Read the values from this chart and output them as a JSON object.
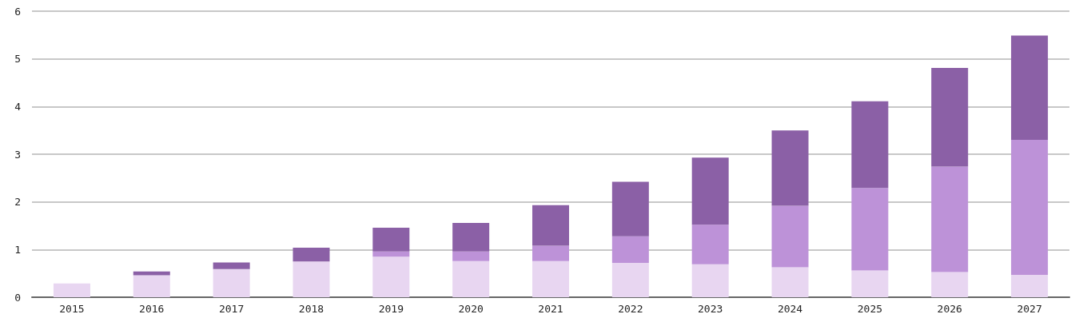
{
  "chart_data": {
    "type": "bar",
    "stacked": true,
    "categories": [
      "2015",
      "2016",
      "2017",
      "2018",
      "2019",
      "2020",
      "2021",
      "2022",
      "2023",
      "2024",
      "2025",
      "2026",
      "2027"
    ],
    "series": [
      {
        "color": "#e8d6f1",
        "values": [
          0.29,
          0.46,
          0.59,
          0.75,
          0.85,
          0.76,
          0.76,
          0.72,
          0.69,
          0.63,
          0.56,
          0.53,
          0.47
        ]
      },
      {
        "color": "#bd92d8",
        "values": [
          0,
          0,
          0,
          0,
          0.11,
          0.2,
          0.32,
          0.56,
          0.83,
          1.29,
          1.73,
          2.21,
          2.83
        ]
      },
      {
        "color": "#8b60a6",
        "values": [
          0,
          0.08,
          0.14,
          0.29,
          0.5,
          0.6,
          0.85,
          1.14,
          1.41,
          1.58,
          1.82,
          2.07,
          2.19
        ]
      }
    ],
    "ylim": [
      0,
      6
    ],
    "yticks": [
      0,
      1,
      2,
      3,
      4,
      5,
      6
    ],
    "grid": "y"
  }
}
